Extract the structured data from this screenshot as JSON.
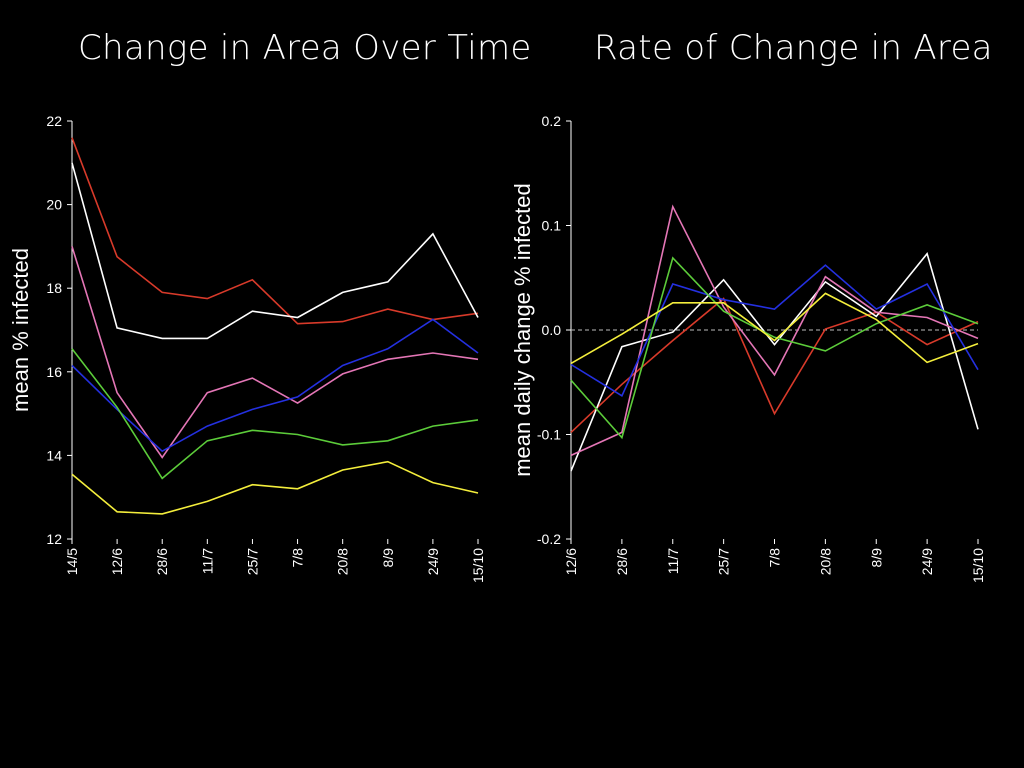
{
  "titles": {
    "left": "Change in Area Over Time",
    "right": "Rate of Change in Area"
  },
  "chart_data": [
    {
      "type": "line",
      "title": "Change in Area Over Time",
      "ylabel": "mean % infected",
      "xlabel": "",
      "categories": [
        "14/5",
        "12/6",
        "28/6",
        "11/7",
        "25/7",
        "7/8",
        "20/8",
        "8/9",
        "24/9",
        "15/10"
      ],
      "ylim": [
        12,
        22
      ],
      "yticks": [
        12,
        14,
        16,
        18,
        20,
        22
      ],
      "series": [
        {
          "color": "#d83a2a",
          "values": [
            21.6,
            18.75,
            17.9,
            17.75,
            18.2,
            17.15,
            17.2,
            17.5,
            17.25,
            17.4
          ]
        },
        {
          "color": "#ffffff",
          "values": [
            21.0,
            17.05,
            16.8,
            16.8,
            17.45,
            17.3,
            17.9,
            18.15,
            19.3,
            17.3
          ]
        },
        {
          "color": "#e476b6",
          "values": [
            19.0,
            15.5,
            13.95,
            15.5,
            15.85,
            15.25,
            15.95,
            16.3,
            16.45,
            16.3
          ]
        },
        {
          "color": "#2430e0",
          "values": [
            16.15,
            15.1,
            14.1,
            14.7,
            15.1,
            15.4,
            16.15,
            16.55,
            17.25,
            16.45
          ]
        },
        {
          "color": "#5ccc3a",
          "values": [
            16.55,
            15.15,
            13.45,
            14.35,
            14.6,
            14.5,
            14.25,
            14.35,
            14.7,
            14.85
          ]
        },
        {
          "color": "#f4ee3c",
          "values": [
            13.55,
            12.65,
            12.6,
            12.9,
            13.3,
            13.2,
            13.65,
            13.85,
            13.35,
            13.1
          ]
        }
      ]
    },
    {
      "type": "line",
      "title": "Rate of Change in Area",
      "ylabel": "mean daily change % infected",
      "xlabel": "",
      "categories": [
        "12/6",
        "28/6",
        "11/7",
        "25/7",
        "7/8",
        "20/8",
        "8/9",
        "24/9",
        "15/10"
      ],
      "ylim": [
        -0.2,
        0.2
      ],
      "yticks": [
        -0.2,
        -0.1,
        0.0,
        0.1,
        0.2
      ],
      "ytick_labels": [
        "-0.2",
        "-0.1",
        "0.0",
        "0.1",
        "0.2"
      ],
      "reference_line": 0.0,
      "series": [
        {
          "color": "#d83a2a",
          "values": [
            -0.098,
            -0.052,
            -0.01,
            0.03,
            -0.08,
            0.001,
            0.017,
            -0.014,
            0.008
          ]
        },
        {
          "color": "#ffffff",
          "values": [
            -0.135,
            -0.016,
            -0.002,
            0.048,
            -0.014,
            0.046,
            0.013,
            0.073,
            -0.095
          ]
        },
        {
          "color": "#e476b6",
          "values": [
            -0.12,
            -0.098,
            0.118,
            0.022,
            -0.043,
            0.051,
            0.017,
            0.012,
            -0.008
          ]
        },
        {
          "color": "#2430e0",
          "values": [
            -0.033,
            -0.063,
            0.044,
            0.029,
            0.02,
            0.062,
            0.02,
            0.044,
            -0.038
          ]
        },
        {
          "color": "#5ccc3a",
          "values": [
            -0.048,
            -0.103,
            0.069,
            0.018,
            -0.007,
            -0.02,
            0.006,
            0.024,
            0.006
          ]
        },
        {
          "color": "#f4ee3c",
          "values": [
            -0.032,
            -0.004,
            0.026,
            0.026,
            -0.01,
            0.035,
            0.01,
            -0.031,
            -0.013
          ]
        }
      ]
    }
  ]
}
